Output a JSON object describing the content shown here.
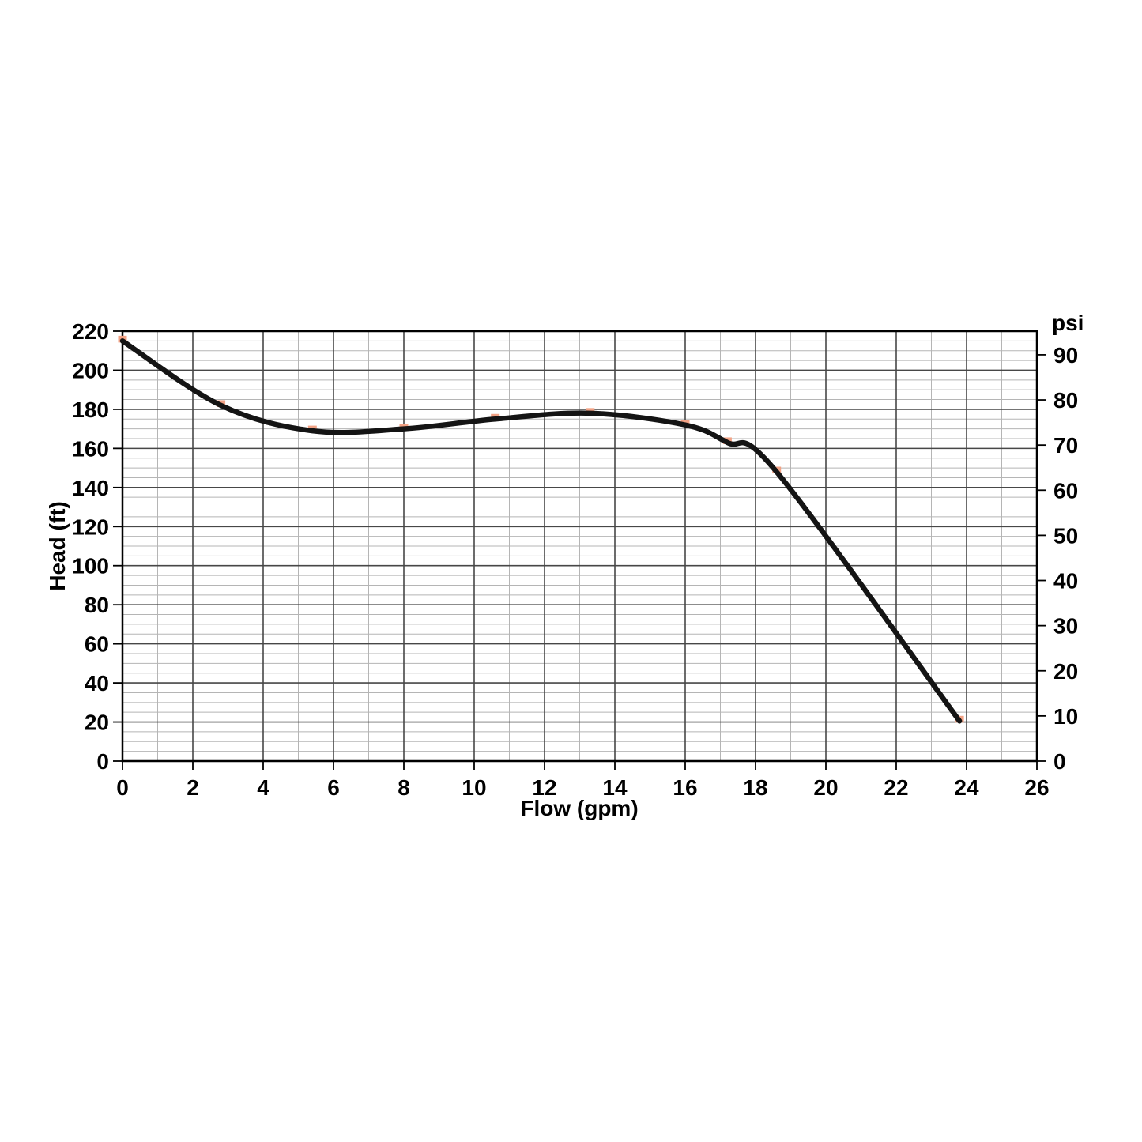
{
  "chart_data": {
    "type": "line",
    "title": "",
    "xlabel": "Flow (gpm)",
    "ylabel": "Head (ft)",
    "y2label": "psi",
    "x_range": [
      0,
      26
    ],
    "y_range": [
      0,
      220
    ],
    "x_major_step": 2,
    "x_minor_step": 1,
    "y_major_step": 20,
    "y_minor_step": 5,
    "x_ticks": [
      0,
      2,
      4,
      6,
      8,
      10,
      12,
      14,
      16,
      18,
      20,
      22,
      24,
      26
    ],
    "y_ticks": [
      0,
      20,
      40,
      60,
      80,
      100,
      120,
      140,
      160,
      180,
      200,
      220
    ],
    "y2_ticks": [
      0,
      10,
      20,
      30,
      40,
      50,
      60,
      70,
      80,
      90
    ],
    "ft_per_psi": 2.31,
    "grid": "major-and-minor",
    "legend_position": "none",
    "series": [
      {
        "name": "pump-performance-curve",
        "marker": "square",
        "marker_color": "#f2a285",
        "line_color": "#141414",
        "points": [
          [
            0,
            215
          ],
          [
            2.8,
            182
          ],
          [
            5.4,
            169
          ],
          [
            8,
            170
          ],
          [
            10.6,
            175
          ],
          [
            13.3,
            178
          ],
          [
            16,
            172
          ],
          [
            17.2,
            163
          ],
          [
            18.6,
            148
          ],
          [
            23.8,
            20.5
          ]
        ]
      }
    ],
    "colors": {
      "major_grid": "#474747",
      "minor_grid": "#b5b5b5",
      "axis_border": "#000000",
      "tick": "#000000",
      "text": "#000000"
    }
  }
}
